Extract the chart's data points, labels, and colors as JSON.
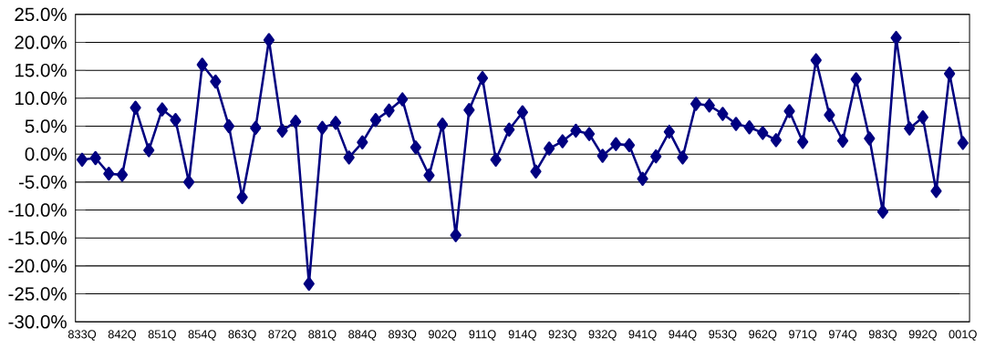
{
  "chart_data": {
    "type": "line",
    "categories": [
      "833Q",
      null,
      null,
      "842Q",
      null,
      null,
      "851Q",
      null,
      null,
      "854Q",
      null,
      null,
      "863Q",
      null,
      null,
      "872Q",
      null,
      null,
      "881Q",
      null,
      null,
      "884Q",
      null,
      null,
      "893Q",
      null,
      null,
      "902Q",
      null,
      null,
      "911Q",
      null,
      null,
      "914Q",
      null,
      null,
      "923Q",
      null,
      null,
      "932Q",
      null,
      null,
      "941Q",
      null,
      null,
      "944Q",
      null,
      null,
      "953Q",
      null,
      null,
      "962Q",
      null,
      null,
      "971Q",
      null,
      null,
      "974Q",
      null,
      null,
      "983Q",
      null,
      null,
      "992Q",
      null,
      null,
      "001Q"
    ],
    "series": [
      {
        "color": "#000080",
        "values": [
          -1.0,
          -0.7,
          -3.5,
          -3.7,
          8.3,
          0.7,
          8.0,
          6.1,
          -5.0,
          16.0,
          13.0,
          5.0,
          -7.7,
          4.7,
          20.4,
          4.2,
          5.8,
          -23.2,
          4.7,
          5.6,
          -0.6,
          2.1,
          6.1,
          7.8,
          9.8,
          1.2,
          -3.8,
          5.3,
          -14.5,
          7.9,
          13.6,
          -1.0,
          4.4,
          7.5,
          -3.1,
          1.0,
          2.3,
          4.2,
          3.6,
          -0.3,
          1.8,
          1.6,
          -4.4,
          -0.4,
          4.0,
          -0.6,
          9.0,
          8.7,
          7.2,
          5.4,
          4.8,
          3.8,
          2.5,
          7.7,
          2.2,
          16.8,
          7.0,
          2.4,
          13.4,
          2.8,
          -10.3,
          20.8,
          4.6,
          6.6,
          -6.6,
          14.4,
          2.0
        ]
      }
    ],
    "ylim": [
      -30,
      25
    ],
    "yticks": [
      {
        "value": -30,
        "label": "-30.0%"
      },
      {
        "value": -25,
        "label": "-25.0%"
      },
      {
        "value": -20,
        "label": "-20.0%"
      },
      {
        "value": -15,
        "label": "-15.0%"
      },
      {
        "value": -10,
        "label": "-10.0%"
      },
      {
        "value": -5,
        "label": "-5.0%"
      },
      {
        "value": 0,
        "label": "0.0%"
      },
      {
        "value": 5,
        "label": "5.0%"
      },
      {
        "value": 10,
        "label": "10.0%"
      },
      {
        "value": 15,
        "label": "15.0%"
      },
      {
        "value": 20,
        "label": "20.0%"
      },
      {
        "value": 25,
        "label": "25.0%"
      }
    ],
    "grid": "y",
    "marker": "diamond",
    "line_style": "solid"
  }
}
